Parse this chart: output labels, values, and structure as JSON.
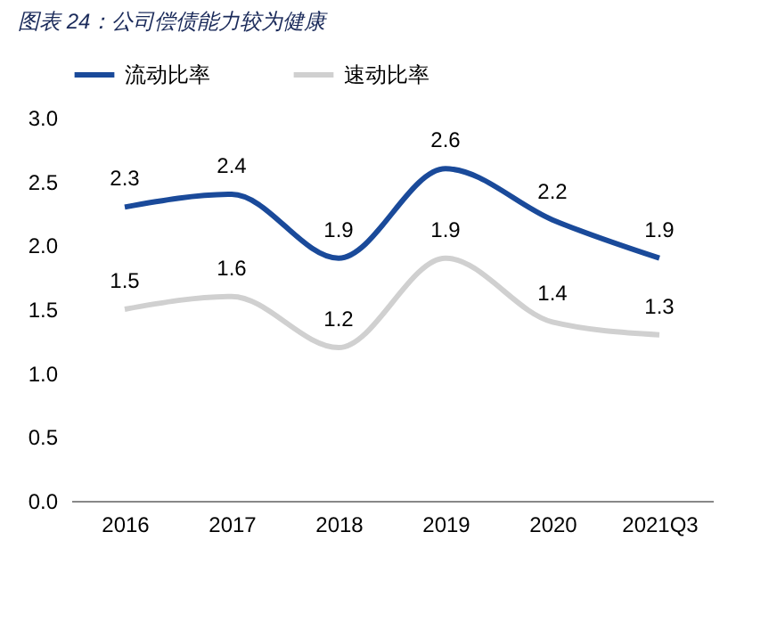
{
  "chart_data": {
    "type": "line",
    "title": "图表 24：公司偿债能力较为健康",
    "categories": [
      "2016",
      "2017",
      "2018",
      "2019",
      "2020",
      "2021Q3"
    ],
    "series": [
      {
        "name": "流动比率",
        "color": "#1a4a9a",
        "values": [
          2.3,
          2.4,
          1.9,
          2.6,
          2.2,
          1.9
        ]
      },
      {
        "name": "速动比率",
        "color": "#d0d0d0",
        "values": [
          1.5,
          1.6,
          1.2,
          1.9,
          1.4,
          1.3
        ]
      }
    ],
    "ylim": [
      0,
      3
    ],
    "yticks": [
      {
        "value": 0,
        "label": "0.0"
      },
      0.5,
      {
        "value": 1,
        "label": "1.0"
      },
      1.5,
      {
        "value": 2,
        "label": "2.0"
      },
      2.5,
      {
        "value": 3,
        "label": "3.0"
      }
    ],
    "grid": false,
    "legend": "top",
    "marker": "none",
    "line_style": "solid",
    "data_labels": true
  }
}
